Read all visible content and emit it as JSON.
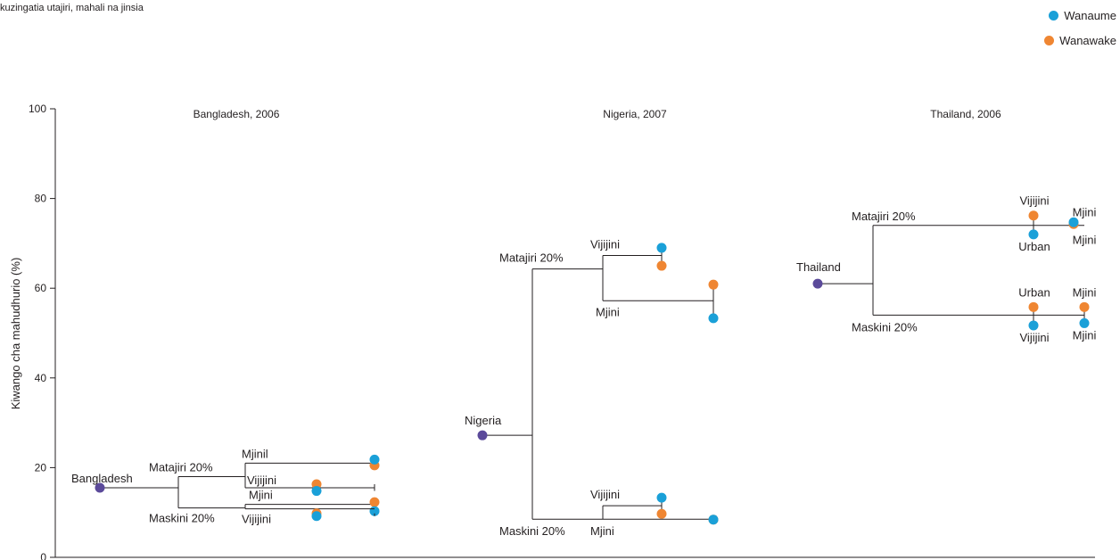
{
  "subtitle": "kuzingatia utajiri, mahali na jinsia",
  "legend": [
    {
      "label": "Wanaume",
      "color": "#1aa0d8"
    },
    {
      "label": "Wanawake",
      "color": "#ef8632"
    }
  ],
  "country_color": "#5b4a9a",
  "chart_data": {
    "type": "scatter",
    "ylabel": "Kiwango cha mahudhurio (%)",
    "ylim": [
      0,
      100
    ],
    "yticks": [
      0,
      20,
      40,
      60,
      80,
      100
    ],
    "panels": [
      {
        "title": "Bangladesh, 2006",
        "country": {
          "label": "Bangladesh",
          "value": 15.5
        },
        "groups": [
          {
            "label": "Matajiri 20%",
            "value": 18,
            "branches": [
              {
                "label": "Mjinil",
                "value": 21,
                "Wanaume": 21.8,
                "Wanawake": 20.5
              },
              {
                "label": "Vijijini",
                "value": 15.5,
                "Wanaume": 14.8,
                "Wanawake": 16.3
              }
            ]
          },
          {
            "label": "Maskini 20%",
            "value": 11,
            "branches": [
              {
                "label": "Mjini",
                "value": 11.8,
                "Wanaume": 10.3,
                "Wanawake": 12.3
              },
              {
                "label": "Vijijini",
                "value": 10.8,
                "Wanaume": 9.2,
                "Wanawake": 9.8
              }
            ]
          }
        ]
      },
      {
        "title": "Nigeria, 2007",
        "country": {
          "label": "Nigeria",
          "value": 27.2
        },
        "groups": [
          {
            "label": "Matajiri 20%",
            "value": 64.3,
            "branches": [
              {
                "label": "Vijijini",
                "value": 67.3,
                "Wanaume": 69,
                "Wanawake": 65
              },
              {
                "label": "Mjini",
                "value": 57.2,
                "Wanaume": 53.3,
                "Wanawake": 60.8
              }
            ]
          },
          {
            "label": "Maskini 20%",
            "value": 8.5,
            "branches": [
              {
                "label": "Vijijini",
                "value": 11.5,
                "Wanaume": 13.3,
                "Wanawake": 9.7
              },
              {
                "label": "Mjini",
                "value": 8.5,
                "Wanaume": 8.4,
                "Wanawake": 8.4
              }
            ]
          }
        ]
      },
      {
        "title": "Thailand, 2006",
        "country": {
          "label": "Thailand",
          "value": 61
        },
        "groups": [
          {
            "label": "Matajiri 20%",
            "value": 74,
            "branches": [
              {
                "label": "Vijijini",
                "label2": "Urban",
                "value": 74,
                "Wanaume": 72,
                "Wanawake": 76.2
              },
              {
                "label": "Mjini",
                "label2": "Mjini",
                "value": 74,
                "Wanaume": 74.7,
                "Wanawake": 74.3
              }
            ]
          },
          {
            "label": "Maskini 20%",
            "value": 54,
            "branches": [
              {
                "label": "Urban",
                "label2": "Vijijini",
                "value": 54,
                "Wanaume": 51.7,
                "Wanawake": 55.8
              },
              {
                "label": "Mjini",
                "label2": "Mjini",
                "value": 54,
                "Wanaume": 52.2,
                "Wanawake": 55.8
              }
            ]
          }
        ]
      }
    ]
  }
}
